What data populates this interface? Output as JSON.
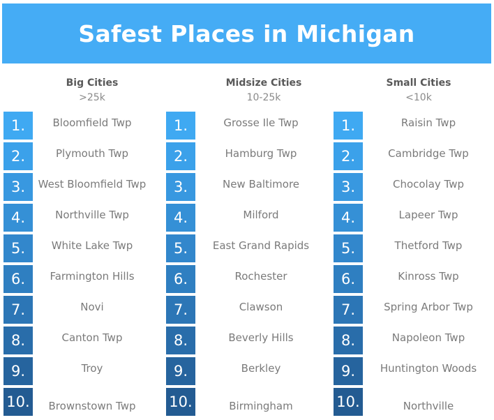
{
  "title": "Safest Places in Michigan",
  "rank_colors": [
    "#3fa9f2",
    "#3ba1ea",
    "#3898e0",
    "#3590d6",
    "#3287cc",
    "#2f7fc1",
    "#2c76b6",
    "#296daa",
    "#26649e",
    "#235b92"
  ],
  "columns": [
    {
      "title": "Big Cities",
      "subtitle": ">25k",
      "items": [
        {
          "rank": "1.",
          "name": "Bloomfield Twp"
        },
        {
          "rank": "2.",
          "name": "Plymouth Twp"
        },
        {
          "rank": "3.",
          "name": "West Bloomfield Twp"
        },
        {
          "rank": "4.",
          "name": "Northville Twp"
        },
        {
          "rank": "5.",
          "name": "White Lake Twp"
        },
        {
          "rank": "6.",
          "name": "Farmington Hills"
        },
        {
          "rank": "7.",
          "name": "Novi"
        },
        {
          "rank": "8.",
          "name": "Canton Twp"
        },
        {
          "rank": "9.",
          "name": "Troy"
        },
        {
          "rank": "10.",
          "name": "Brownstown Twp"
        }
      ]
    },
    {
      "title": "Midsize Cities",
      "subtitle": "10-25k",
      "items": [
        {
          "rank": "1.",
          "name": "Grosse Ile Twp"
        },
        {
          "rank": "2.",
          "name": "Hamburg Twp"
        },
        {
          "rank": "3.",
          "name": "New Baltimore"
        },
        {
          "rank": "4.",
          "name": "Milford"
        },
        {
          "rank": "5.",
          "name": "East Grand Rapids"
        },
        {
          "rank": "6.",
          "name": "Rochester"
        },
        {
          "rank": "7.",
          "name": "Clawson"
        },
        {
          "rank": "8.",
          "name": "Beverly Hills"
        },
        {
          "rank": "9.",
          "name": "Berkley"
        },
        {
          "rank": "10.",
          "name": "Birmingham"
        }
      ]
    },
    {
      "title": "Small Cities",
      "subtitle": "<10k",
      "items": [
        {
          "rank": "1.",
          "name": "Raisin Twp"
        },
        {
          "rank": "2.",
          "name": "Cambridge Twp"
        },
        {
          "rank": "3.",
          "name": "Chocolay Twp"
        },
        {
          "rank": "4.",
          "name": "Lapeer Twp"
        },
        {
          "rank": "5.",
          "name": "Thetford Twp"
        },
        {
          "rank": "6.",
          "name": "Kinross Twp"
        },
        {
          "rank": "7.",
          "name": "Spring Arbor Twp"
        },
        {
          "rank": "8.",
          "name": "Napoleon Twp"
        },
        {
          "rank": "9.",
          "name": "Huntington Woods"
        },
        {
          "rank": "10.",
          "name": "Northville"
        }
      ]
    }
  ]
}
